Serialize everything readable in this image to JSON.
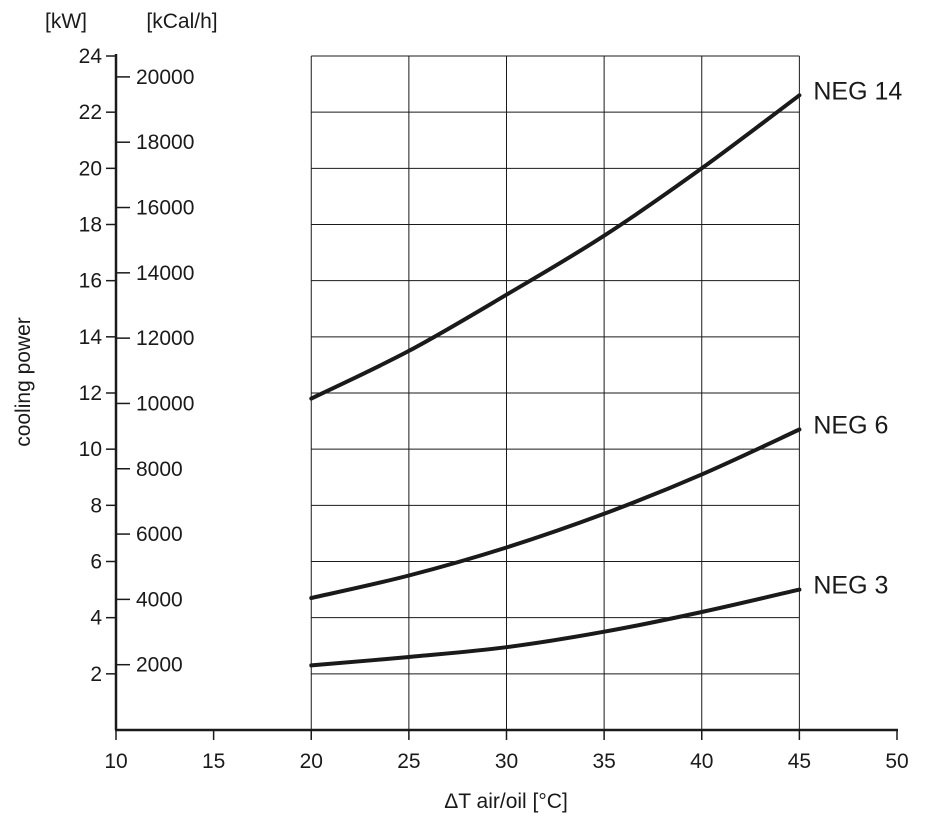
{
  "chart_data": {
    "type": "line",
    "title": "",
    "xlabel": "ΔT air/oil [°C]",
    "ylabel": "cooling power",
    "y_unit_primary": "[kW]",
    "y_unit_secondary": "[kCal/h]",
    "xlim": [
      10,
      50
    ],
    "ylim": [
      0,
      24
    ],
    "x_ticks": [
      10,
      15,
      20,
      25,
      30,
      35,
      40,
      45,
      50
    ],
    "y_ticks": [
      2,
      4,
      6,
      8,
      10,
      12,
      14,
      16,
      18,
      20,
      22,
      24
    ],
    "y2_ticks": [
      2000,
      4000,
      6000,
      8000,
      10000,
      12000,
      14000,
      16000,
      18000,
      20000
    ],
    "y2_factor_kcalh_per_kw": 860,
    "grid": {
      "x_from": 20,
      "x_to": 45,
      "y_step": 2,
      "x_step": 5
    },
    "series": [
      {
        "name": "NEG 14",
        "x": [
          20,
          25,
          30,
          35,
          40,
          45
        ],
        "y": [
          11.8,
          13.5,
          15.5,
          17.6,
          20.0,
          22.6
        ]
      },
      {
        "name": "NEG 6",
        "x": [
          20,
          25,
          30,
          35,
          40,
          45
        ],
        "y": [
          4.7,
          5.5,
          6.5,
          7.7,
          9.1,
          10.7
        ]
      },
      {
        "name": "NEG 3",
        "x": [
          20,
          25,
          30,
          35,
          40,
          45
        ],
        "y": [
          2.3,
          2.6,
          2.95,
          3.5,
          4.2,
          5.0
        ]
      }
    ]
  }
}
